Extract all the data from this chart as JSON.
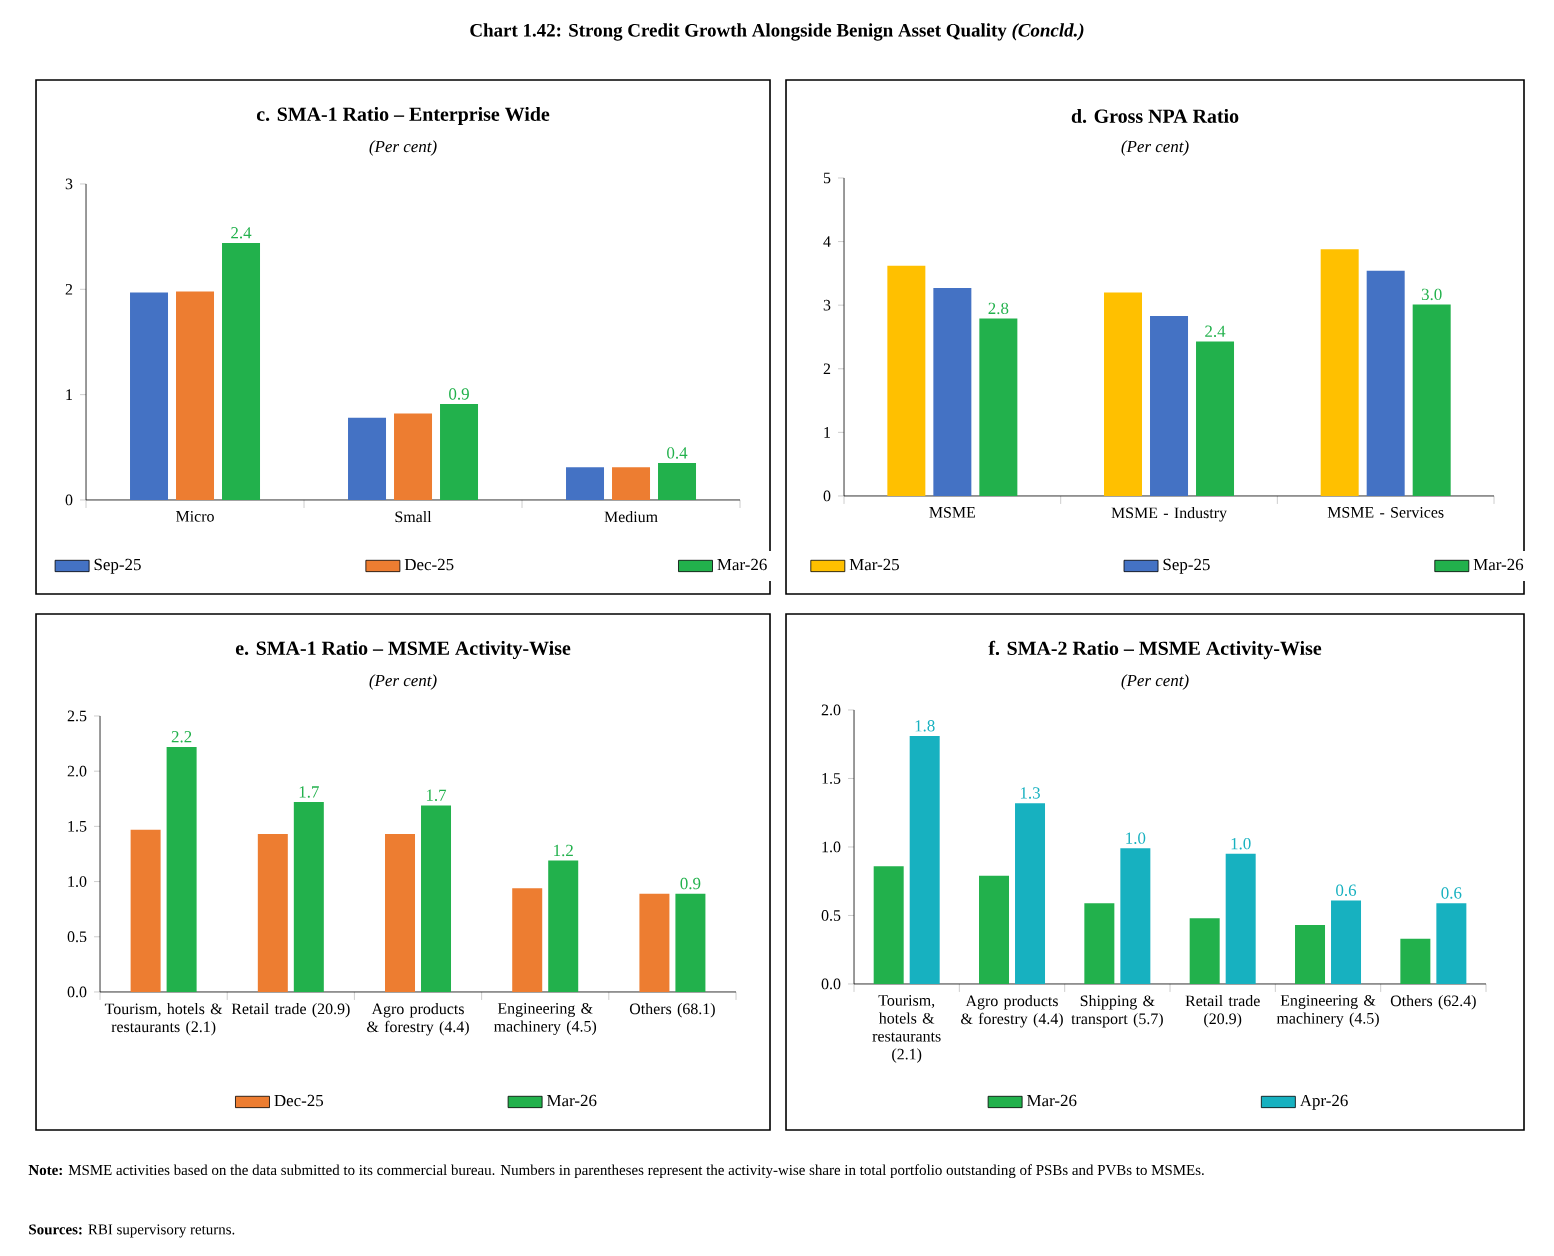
{
  "chart_data": [
    {
      "type": "bar",
      "title": "c. SMA-1 Ratio – Enterprise Wide",
      "subtitle": "(Per cent)",
      "categories": [
        "Micro",
        "Small",
        "Medium"
      ],
      "ylim": [
        0,
        3
      ],
      "yticks": [
        0,
        1,
        2,
        3
      ],
      "legend": "bottom",
      "annotations": [
        "Chart 1.42: Strong Credit Growth Alongside Benign Asset Quality *(Concld.)*"
      ],
      "series": [
        {
          "name": "Sep-25",
          "color": "#4472c4",
          "values": [
            1.97,
            0.78,
            0.31
          ]
        },
        {
          "name": "Dec-25",
          "color": "#ed7d31",
          "values": [
            1.98,
            0.82,
            0.31
          ]
        },
        {
          "name": "Mar-26",
          "color": "#22b14c",
          "values": [
            2.44,
            0.91,
            0.35
          ],
          "value_labels": [
            "2.4",
            "0.9",
            "0.4"
          ]
        }
      ]
    },
    {
      "type": "bar",
      "title": "d. Gross NPA Ratio",
      "subtitle": "(Per cent)",
      "categories": [
        "MSME",
        "MSME - Industry",
        "MSME - Services"
      ],
      "ylim": [
        0,
        5
      ],
      "yticks": [
        0,
        1,
        2,
        3,
        4,
        5
      ],
      "legend": "bottom",
      "series": [
        {
          "name": "Mar-25",
          "color": "#ffc000",
          "values": [
            3.62,
            3.2,
            3.88
          ]
        },
        {
          "name": "Sep-25",
          "color": "#4472c4",
          "values": [
            3.27,
            2.83,
            3.54
          ]
        },
        {
          "name": "Mar-26",
          "color": "#22b14c",
          "values": [
            2.79,
            2.43,
            3.01
          ],
          "value_labels": [
            "2.8",
            "2.4",
            "3.0"
          ]
        }
      ]
    },
    {
      "type": "bar",
      "title": "e. SMA-1 Ratio – MSME Activity-Wise",
      "subtitle": "(Per cent)",
      "categories": [
        "Tourism, hotels & restaurants (2.1)",
        "Retail trade (20.9)",
        "Agro products & forestry (4.4)",
        "Engineering & machinery (4.5)",
        "Others (68.1)"
      ],
      "ylim": [
        0,
        2.5
      ],
      "yticks": [
        {
          "value": 0,
          "label": "0.0"
        },
        {
          "value": 0.5,
          "label": "0.5"
        },
        {
          "value": 1,
          "label": "1.0"
        },
        {
          "value": 1.5,
          "label": "1.5"
        },
        {
          "value": 2,
          "label": "2.0"
        },
        {
          "value": 2.5,
          "label": "2.5"
        }
      ],
      "legend": "bottom",
      "series": [
        {
          "name": "Dec-25",
          "color": "#ed7d31",
          "values": [
            1.47,
            1.43,
            1.43,
            0.94,
            0.89
          ]
        },
        {
          "name": "Mar-26",
          "color": "#22b14c",
          "values": [
            2.22,
            1.72,
            1.69,
            1.19,
            0.89
          ],
          "value_labels": [
            "2.2",
            "1.7",
            "1.7",
            "1.2",
            "0.9"
          ]
        }
      ]
    },
    {
      "type": "bar",
      "title": "f. SMA-2 Ratio – MSME Activity-Wise",
      "subtitle": "(Per cent)",
      "categories": [
        "Tourism, hotels & restaurants (2.1)",
        "Agro products & forestry (4.4)",
        "Shipping & transport (5.7)",
        "Retail trade (20.9)",
        "Engineering & machinery (4.5)",
        "Others (62.4)"
      ],
      "ylim": [
        0,
        2
      ],
      "yticks": [
        {
          "value": 0,
          "label": "0.0"
        },
        {
          "value": 0.5,
          "label": "0.5"
        },
        {
          "value": 1,
          "label": "1.0"
        },
        {
          "value": 1.5,
          "label": "1.5"
        },
        {
          "value": 2,
          "label": "2.0"
        }
      ],
      "legend": "bottom",
      "annotations": [
        "**Note:** MSME activities based on the data submitted to its commercial bureau. Numbers in parentheses represent the activity-wise share in total portfolio outstanding of PSBs and PVBs to MSMEs.",
        "**Sources:** RBI supervisory returns."
      ],
      "series": [
        {
          "name": "Mar-26",
          "color": "#22b14c",
          "values": [
            0.86,
            0.79,
            0.59,
            0.48,
            0.43,
            0.33
          ]
        },
        {
          "name": "Apr-26",
          "color": "#17b1c0",
          "values": [
            1.81,
            1.32,
            0.99,
            0.95,
            0.61,
            0.59
          ],
          "value_labels": [
            "1.8",
            "1.3",
            "1.0",
            "1.0",
            "0.6",
            "0.6"
          ]
        }
      ]
    }
  ]
}
